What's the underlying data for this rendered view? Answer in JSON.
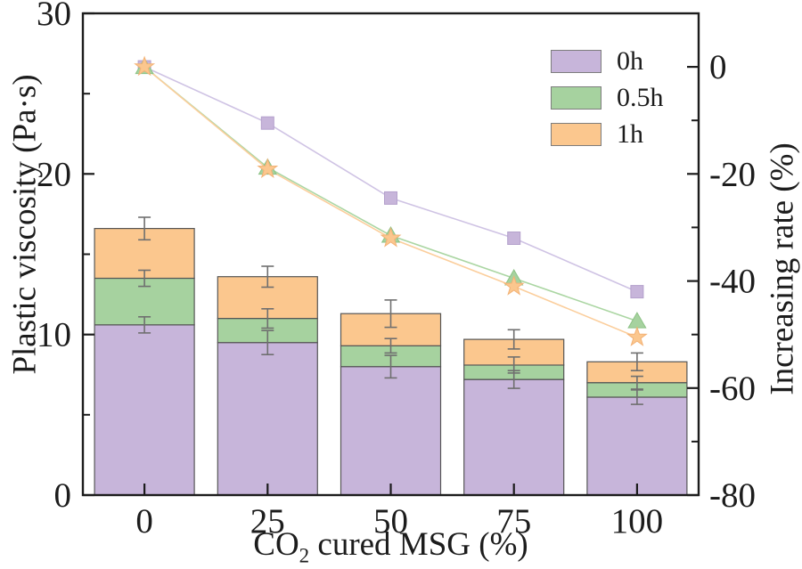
{
  "chart_data": {
    "type": "bar+line",
    "title": "",
    "categories": [
      "0",
      "25",
      "50",
      "75",
      "100"
    ],
    "x_axis": {
      "title_prefix": "CO",
      "title_subscript": "2",
      "title_suffix": " cured MSG (%)",
      "tick_labels": [
        "0",
        "25",
        "50",
        "75",
        "100"
      ]
    },
    "left_axis": {
      "title": "Plastic viscosity (Pa·s)",
      "range": [
        0,
        30
      ],
      "major_ticks": [
        0,
        10,
        20,
        30
      ],
      "major_tick_labels": [
        "0",
        "10",
        "20",
        "30"
      ],
      "minor_ticks": [
        5,
        15,
        25
      ]
    },
    "right_axis": {
      "title": "Increasing rate (%)",
      "range": [
        -80,
        10
      ],
      "major_ticks": [
        0,
        -20,
        -40,
        -60,
        -80
      ],
      "major_tick_labels": [
        "0",
        "-20",
        "-40",
        "-60",
        "-80"
      ],
      "minor_ticks": [
        -10,
        -30,
        -50,
        -70
      ]
    },
    "bar_series_note": "values are cumulative stack tops in Pa·s (plastic viscosity at each curing time); errors are ± error-bar half lengths",
    "bar_series": [
      {
        "name": "0h",
        "color": "#c7b5da",
        "values": [
          10.6,
          9.5,
          8.0,
          7.2,
          6.1
        ],
        "errors": [
          0.5,
          0.75,
          0.7,
          0.55,
          0.45
        ]
      },
      {
        "name": "0.5h",
        "color": "#a6d29f",
        "values": [
          13.5,
          11.0,
          9.3,
          8.1,
          7.0
        ],
        "errors": [
          0.5,
          0.6,
          0.45,
          0.5,
          0.4
        ]
      },
      {
        "name": "1h",
        "color": "#fbc78e",
        "values": [
          16.6,
          13.6,
          11.3,
          9.7,
          8.3
        ],
        "errors": [
          0.7,
          0.65,
          0.85,
          0.6,
          0.55
        ]
      }
    ],
    "line_series_note": "increasing rate (%) read on right axis",
    "line_series": [
      {
        "name": "0h",
        "marker": "square",
        "color": "#cfc3e4",
        "marker_fill": "#c7b5da",
        "marker_edge": "#b4a1cc",
        "values": [
          0,
          -10.5,
          -24.5,
          -32,
          -42
        ]
      },
      {
        "name": "0.5h",
        "marker": "triangle",
        "color": "#abd6a3",
        "marker_fill": "#a6d29f",
        "marker_edge": "#8cc285",
        "values": [
          0,
          -18.8,
          -31.5,
          -39.5,
          -47.5
        ]
      },
      {
        "name": "1h",
        "marker": "star",
        "color": "#fbce9c",
        "marker_fill": "#fbc78e",
        "marker_edge": "#f3b276",
        "values": [
          0,
          -19.1,
          -32,
          -41,
          -50.5
        ]
      }
    ],
    "legend": {
      "items": [
        {
          "label": "0h",
          "color": "#c7b5da"
        },
        {
          "label": "0.5h",
          "color": "#a6d29f"
        },
        {
          "label": "1h",
          "color": "#fbc78e"
        }
      ]
    },
    "style": {
      "bar_edge_color": "#565656",
      "error_bar_color": "#6f6f6f",
      "frame_color": "#1c1c1c",
      "text_color": "#1c1c1c",
      "background": "#ffffff"
    }
  }
}
